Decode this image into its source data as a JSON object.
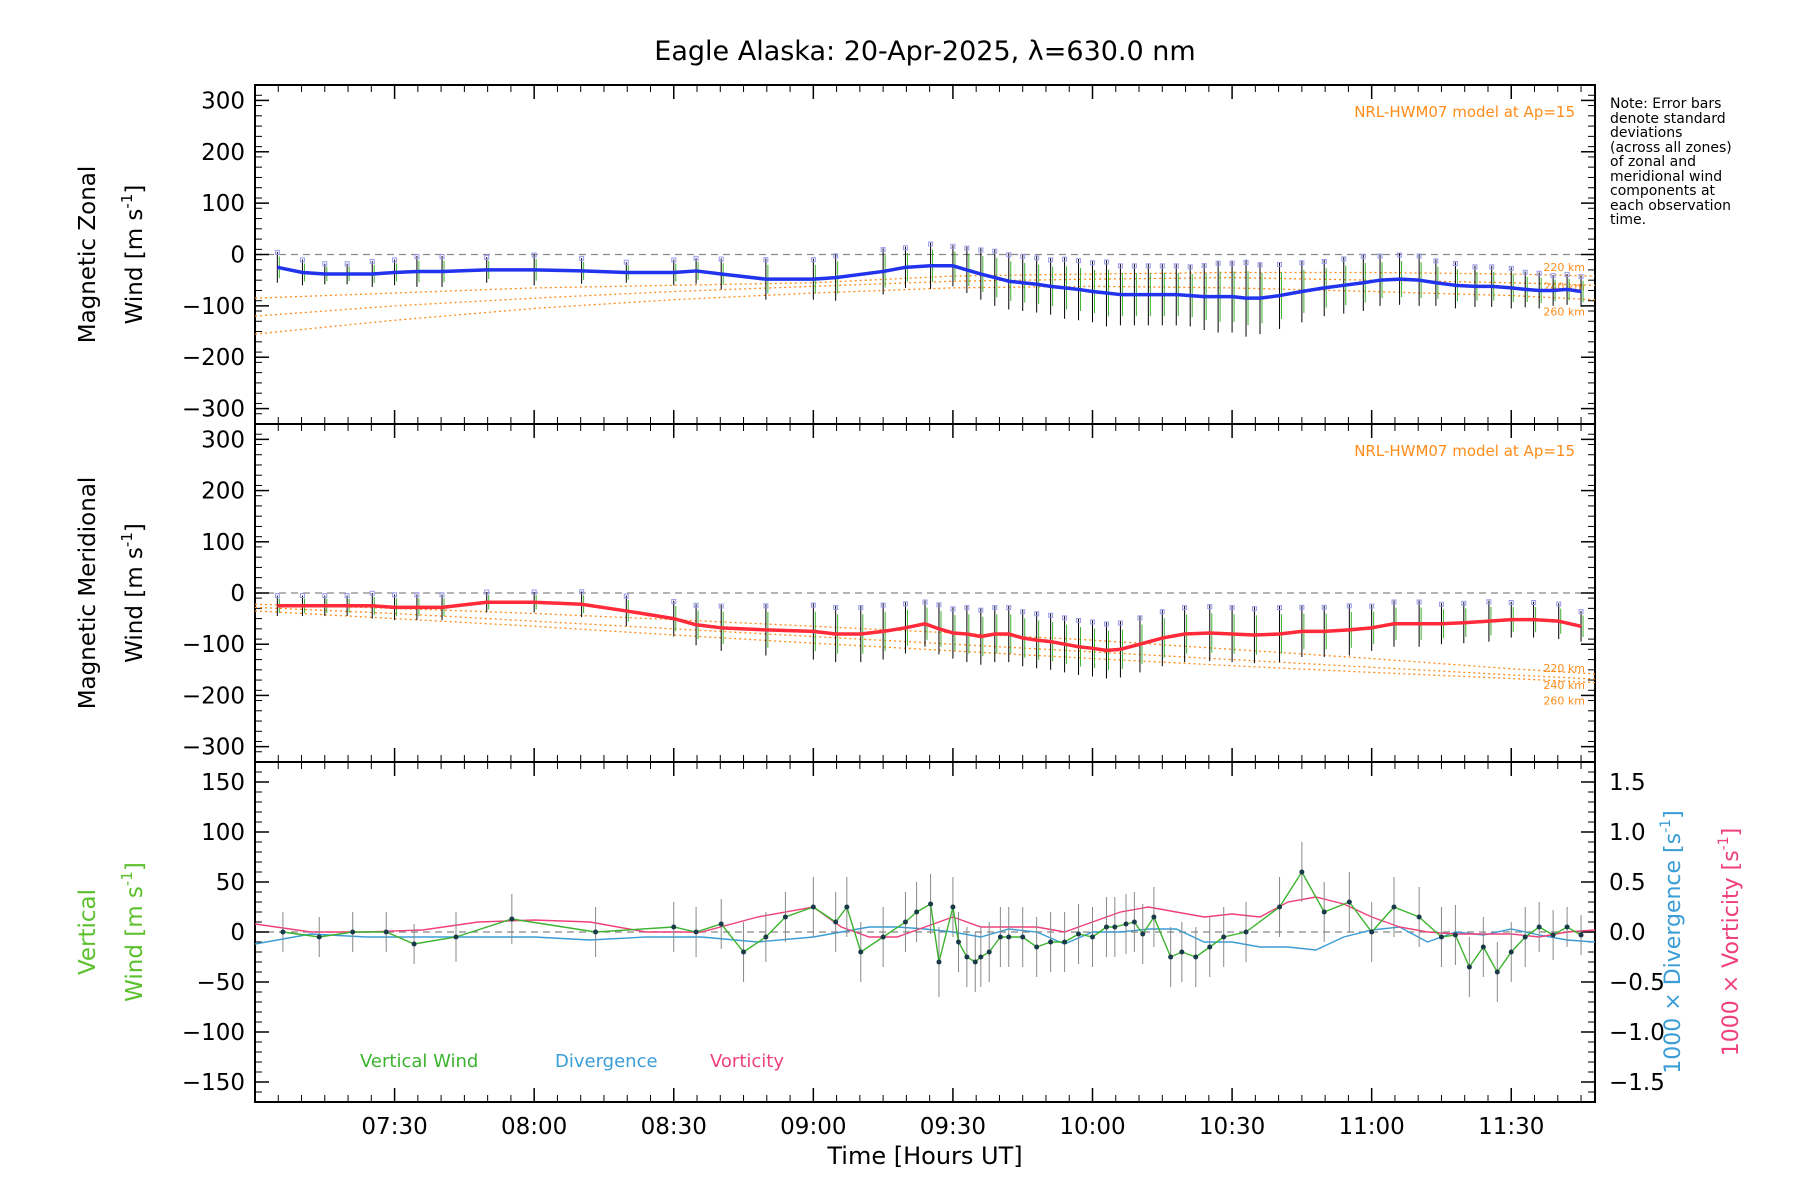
{
  "chart_data": [
    {
      "type": "line",
      "id": "zonal",
      "title": "Eagle Alaska: 20-Apr-2025, λ=630.0 nm",
      "ylabel_line1": "Magnetic Zonal",
      "ylabel_line2": "Wind [m s",
      "ylabel_sup": "-1",
      "ylabel_end": "]",
      "ylim": [
        -330,
        330
      ],
      "yticks": [
        -300,
        -200,
        -100,
        0,
        100,
        200,
        300
      ],
      "model_label": "NRL-HWM07 model at Ap=15",
      "model_alt_labels": [
        "220 km",
        "240 km",
        "260 km"
      ],
      "colors": {
        "wind": "#2233ee",
        "model": "#ff8c1a"
      },
      "series": [
        {
          "name": "Magnetic Zonal Wind",
          "x": [
            7.08,
            7.17,
            7.25,
            7.33,
            7.42,
            7.5,
            7.58,
            7.67,
            7.83,
            8.0,
            8.17,
            8.33,
            8.5,
            8.58,
            8.67,
            8.83,
            9.0,
            9.08,
            9.25,
            9.33,
            9.42,
            9.5,
            9.55,
            9.6,
            9.65,
            9.7,
            9.75,
            9.8,
            9.85,
            9.9,
            9.95,
            10.0,
            10.05,
            10.1,
            10.15,
            10.2,
            10.25,
            10.3,
            10.35,
            10.4,
            10.45,
            10.5,
            10.55,
            10.6,
            10.67,
            10.75,
            10.83,
            10.9,
            10.97,
            11.03,
            11.1,
            11.17,
            11.23,
            11.3,
            11.37,
            11.43,
            11.5,
            11.55,
            11.6,
            11.65,
            11.7,
            11.75
          ],
          "y": [
            -25,
            -35,
            -38,
            -38,
            -38,
            -35,
            -33,
            -33,
            -30,
            -30,
            -32,
            -35,
            -35,
            -32,
            -38,
            -48,
            -48,
            -45,
            -33,
            -25,
            -22,
            -22,
            -30,
            -38,
            -45,
            -52,
            -55,
            -58,
            -62,
            -65,
            -68,
            -72,
            -75,
            -78,
            -78,
            -78,
            -78,
            -78,
            -80,
            -82,
            -82,
            -82,
            -85,
            -85,
            -80,
            -72,
            -65,
            -60,
            -55,
            -50,
            -48,
            -50,
            -55,
            -60,
            -62,
            -62,
            -65,
            -68,
            -70,
            -70,
            -68,
            -72
          ],
          "err": [
            30,
            25,
            20,
            20,
            25,
            25,
            30,
            30,
            25,
            30,
            25,
            20,
            25,
            25,
            30,
            40,
            40,
            45,
            45,
            40,
            45,
            40,
            45,
            50,
            55,
            55,
            55,
            55,
            55,
            60,
            60,
            60,
            65,
            60,
            60,
            60,
            60,
            60,
            60,
            65,
            70,
            70,
            75,
            70,
            65,
            60,
            55,
            55,
            55,
            50,
            50,
            50,
            45,
            45,
            40,
            40,
            40,
            35,
            35,
            30,
            30,
            30
          ]
        }
      ],
      "model_series": [
        {
          "name": "220 km",
          "x": [
            7.0,
            7.5,
            8.0,
            8.5,
            9.0,
            9.5,
            10.0,
            10.5,
            11.0,
            11.5,
            11.8
          ],
          "y": [
            -85,
            -75,
            -65,
            -60,
            -55,
            -42,
            -38,
            -35,
            -35,
            -38,
            -42
          ]
        },
        {
          "name": "240 km",
          "x": [
            7.0,
            7.5,
            8.0,
            8.5,
            9.0,
            9.5,
            10.0,
            10.5,
            11.0,
            11.5,
            11.8
          ],
          "y": [
            -120,
            -100,
            -85,
            -72,
            -62,
            -52,
            -48,
            -45,
            -50,
            -55,
            -60
          ]
        },
        {
          "name": "260 km",
          "x": [
            7.0,
            7.5,
            8.0,
            8.5,
            9.0,
            9.5,
            10.0,
            10.5,
            11.0,
            11.5,
            11.8
          ],
          "y": [
            -155,
            -128,
            -105,
            -88,
            -75,
            -65,
            -62,
            -65,
            -72,
            -80,
            -88
          ]
        }
      ]
    },
    {
      "type": "line",
      "id": "meridional",
      "ylabel_line1": "Magnetic Meridional",
      "ylabel_line2": "Wind [m s",
      "ylabel_sup": "-1",
      "ylabel_end": "]",
      "ylim": [
        -330,
        330
      ],
      "yticks": [
        -300,
        -200,
        -100,
        0,
        100,
        200,
        300
      ],
      "model_label": "NRL-HWM07 model at Ap=15",
      "model_alt_labels": [
        "220 km",
        "240 km",
        "260 km"
      ],
      "colors": {
        "wind": "#ff2b3a",
        "model": "#ff8c1a"
      },
      "series": [
        {
          "name": "Magnetic Meridional Wind",
          "x": [
            7.08,
            7.17,
            7.25,
            7.33,
            7.42,
            7.5,
            7.58,
            7.67,
            7.83,
            8.0,
            8.17,
            8.33,
            8.5,
            8.58,
            8.67,
            8.83,
            9.0,
            9.08,
            9.17,
            9.25,
            9.33,
            9.4,
            9.45,
            9.5,
            9.55,
            9.6,
            9.65,
            9.7,
            9.75,
            9.8,
            9.85,
            9.9,
            9.95,
            10.0,
            10.05,
            10.1,
            10.17,
            10.25,
            10.33,
            10.42,
            10.5,
            10.58,
            10.67,
            10.75,
            10.83,
            10.92,
            11.0,
            11.08,
            11.17,
            11.25,
            11.33,
            11.42,
            11.5,
            11.58,
            11.67,
            11.75
          ],
          "y": [
            -25,
            -25,
            -25,
            -25,
            -25,
            -28,
            -28,
            -28,
            -18,
            -18,
            -22,
            -35,
            -50,
            -62,
            -68,
            -72,
            -75,
            -80,
            -80,
            -75,
            -68,
            -60,
            -70,
            -78,
            -80,
            -85,
            -80,
            -80,
            -88,
            -92,
            -95,
            -100,
            -105,
            -108,
            -112,
            -110,
            -100,
            -88,
            -80,
            -78,
            -80,
            -82,
            -80,
            -75,
            -75,
            -72,
            -68,
            -60,
            -60,
            -60,
            -58,
            -55,
            -52,
            -52,
            -55,
            -65
          ],
          "err": [
            20,
            20,
            20,
            20,
            25,
            25,
            25,
            25,
            20,
            20,
            25,
            30,
            35,
            40,
            45,
            50,
            55,
            55,
            55,
            55,
            50,
            45,
            50,
            50,
            55,
            55,
            55,
            55,
            55,
            55,
            55,
            55,
            55,
            55,
            55,
            55,
            55,
            55,
            55,
            55,
            55,
            55,
            55,
            50,
            50,
            50,
            45,
            45,
            45,
            40,
            40,
            40,
            35,
            35,
            35,
            30
          ]
        }
      ],
      "model_series": [
        {
          "name": "220 km",
          "x": [
            7.0,
            7.5,
            8.0,
            8.5,
            9.0,
            9.5,
            10.0,
            10.5,
            11.0,
            11.5,
            11.8
          ],
          "y": [
            -22,
            -30,
            -40,
            -52,
            -65,
            -78,
            -92,
            -110,
            -128,
            -148,
            -158
          ]
        },
        {
          "name": "240 km",
          "x": [
            7.0,
            7.5,
            8.0,
            8.5,
            9.0,
            9.5,
            10.0,
            10.5,
            11.0,
            11.5,
            11.8
          ],
          "y": [
            -28,
            -40,
            -55,
            -70,
            -85,
            -100,
            -115,
            -130,
            -145,
            -160,
            -168
          ]
        },
        {
          "name": "260 km",
          "x": [
            7.0,
            7.5,
            8.0,
            8.5,
            9.0,
            9.5,
            10.0,
            10.5,
            11.0,
            11.5,
            11.8
          ],
          "y": [
            -35,
            -50,
            -65,
            -82,
            -98,
            -113,
            -128,
            -142,
            -155,
            -167,
            -175
          ]
        }
      ]
    },
    {
      "type": "line",
      "id": "vertical",
      "ylabel_line1": "Vertical",
      "ylabel_line2": "Wind [m s",
      "ylabel_sup": "-1",
      "ylabel_end": "]",
      "ylim": [
        -170,
        170
      ],
      "yticks": [
        -150,
        -100,
        -50,
        0,
        50,
        100,
        150
      ],
      "y2lim": [
        -1.7,
        1.7
      ],
      "y2ticks": [
        -1.5,
        -1.0,
        -0.5,
        0.0,
        0.5,
        1.0,
        1.5
      ],
      "y2tick_labels": [
        "−1.5",
        "−1.0",
        "−0.5",
        "0.0",
        "0.5",
        "1.0",
        "1.5"
      ],
      "y2label_div": "1000 × Divergence [s",
      "y2label_vor": "1000 × Vorticity [s",
      "y2label_sup": "-1",
      "y2label_end": "]",
      "legend": [
        {
          "label": "Vertical Wind",
          "color": "#3cb32e"
        },
        {
          "label": "Divergence",
          "color": "#3a9dd6"
        },
        {
          "label": "Vorticity",
          "color": "#f0407a"
        }
      ],
      "xlabel": "Time [Hours UT]",
      "xticks": [
        "07:30",
        "08:00",
        "08:30",
        "09:00",
        "09:30",
        "10:00",
        "10:30",
        "11:00",
        "11:30"
      ],
      "xtick_values": [
        7.5,
        8.0,
        8.5,
        9.0,
        9.5,
        10.0,
        10.5,
        11.0,
        11.5
      ],
      "xlim": [
        7.0,
        11.8
      ],
      "series": [
        {
          "name": "Vertical Wind",
          "axis": "left",
          "x": [
            7.1,
            7.23,
            7.35,
            7.47,
            7.57,
            7.72,
            7.92,
            8.22,
            8.5,
            8.58,
            8.67,
            8.75,
            8.83,
            8.9,
            9.0,
            9.08,
            9.12,
            9.17,
            9.25,
            9.33,
            9.37,
            9.42,
            9.45,
            9.5,
            9.52,
            9.55,
            9.58,
            9.6,
            9.63,
            9.67,
            9.7,
            9.75,
            9.8,
            9.85,
            9.9,
            9.95,
            10.0,
            10.05,
            10.08,
            10.12,
            10.15,
            10.18,
            10.22,
            10.28,
            10.32,
            10.37,
            10.42,
            10.47,
            10.55,
            10.67,
            10.75,
            10.83,
            10.92,
            11.0,
            11.08,
            11.17,
            11.25,
            11.3,
            11.35,
            11.4,
            11.45,
            11.5,
            11.55,
            11.6,
            11.65,
            11.7,
            11.75
          ],
          "y": [
            0,
            -5,
            0,
            0,
            -12,
            -5,
            13,
            0,
            5,
            0,
            8,
            -20,
            -5,
            15,
            25,
            10,
            25,
            -20,
            -5,
            10,
            20,
            28,
            -30,
            25,
            -10,
            -25,
            -30,
            -25,
            -20,
            -5,
            -5,
            -5,
            -15,
            -10,
            -10,
            -2,
            -5,
            5,
            5,
            8,
            10,
            -2,
            15,
            -25,
            -20,
            -25,
            -15,
            -5,
            0,
            25,
            60,
            20,
            30,
            0,
            25,
            15,
            -5,
            -3,
            -35,
            -15,
            -40,
            -20,
            -5,
            5,
            -3,
            5,
            -3
          ],
          "err": [
            20,
            20,
            20,
            20,
            20,
            25,
            25,
            25,
            25,
            25,
            25,
            30,
            25,
            25,
            30,
            30,
            30,
            30,
            30,
            30,
            30,
            30,
            35,
            30,
            30,
            30,
            30,
            30,
            30,
            30,
            30,
            30,
            30,
            30,
            30,
            30,
            30,
            30,
            30,
            30,
            30,
            30,
            30,
            30,
            30,
            30,
            30,
            30,
            30,
            30,
            30,
            30,
            30,
            30,
            30,
            30,
            30,
            30,
            30,
            30,
            30,
            30,
            30,
            25,
            25,
            20,
            20
          ]
        },
        {
          "name": "Divergence",
          "axis": "right",
          "x": [
            7.0,
            7.2,
            7.4,
            7.6,
            7.8,
            8.0,
            8.2,
            8.4,
            8.6,
            8.8,
            9.0,
            9.1,
            9.2,
            9.3,
            9.4,
            9.5,
            9.6,
            9.7,
            9.8,
            9.9,
            10.0,
            10.1,
            10.2,
            10.3,
            10.4,
            10.5,
            10.6,
            10.7,
            10.8,
            10.9,
            11.0,
            11.1,
            11.2,
            11.3,
            11.4,
            11.5,
            11.6,
            11.7,
            11.8
          ],
          "y": [
            -0.12,
            -0.02,
            -0.05,
            -0.05,
            -0.05,
            -0.05,
            -0.08,
            -0.05,
            -0.05,
            -0.1,
            -0.05,
            0.0,
            0.05,
            0.05,
            0.03,
            0.0,
            -0.05,
            0.03,
            0.0,
            -0.12,
            0.0,
            0.0,
            0.03,
            0.03,
            -0.1,
            -0.1,
            -0.15,
            -0.15,
            -0.18,
            -0.05,
            0.02,
            0.05,
            -0.1,
            0.0,
            -0.03,
            0.03,
            -0.03,
            -0.08,
            -0.1
          ]
        },
        {
          "name": "Vorticity",
          "axis": "right",
          "x": [
            7.0,
            7.2,
            7.4,
            7.6,
            7.8,
            8.0,
            8.2,
            8.4,
            8.6,
            8.8,
            9.0,
            9.1,
            9.2,
            9.3,
            9.4,
            9.5,
            9.6,
            9.7,
            9.8,
            9.9,
            10.0,
            10.1,
            10.2,
            10.3,
            10.4,
            10.5,
            10.6,
            10.7,
            10.8,
            10.9,
            11.0,
            11.1,
            11.2,
            11.3,
            11.4,
            11.5,
            11.6,
            11.7,
            11.8
          ],
          "y": [
            0.08,
            0.0,
            0.0,
            0.02,
            0.1,
            0.12,
            0.1,
            0.0,
            0.0,
            0.15,
            0.25,
            0.05,
            -0.05,
            -0.05,
            0.05,
            0.15,
            0.05,
            0.05,
            0.05,
            0.0,
            0.1,
            0.2,
            0.25,
            0.2,
            0.15,
            0.18,
            0.15,
            0.3,
            0.35,
            0.28,
            0.15,
            0.05,
            0.0,
            -0.02,
            -0.02,
            -0.02,
            -0.05,
            0.0,
            0.02
          ]
        }
      ]
    }
  ]
}
